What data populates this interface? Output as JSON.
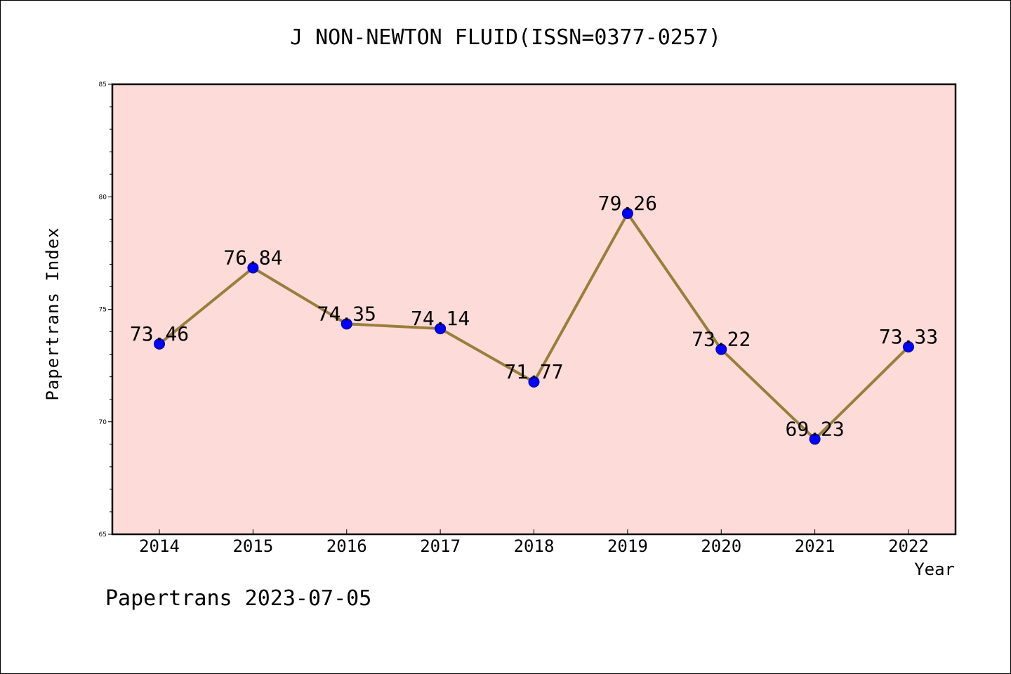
{
  "chart_data": {
    "type": "line",
    "title": "J NON-NEWTON FLUID(ISSN=0377-0257)",
    "xlabel": "Year",
    "ylabel": "Papertrans Index",
    "categories": [
      "2014",
      "2015",
      "2016",
      "2017",
      "2018",
      "2019",
      "2020",
      "2021",
      "2022"
    ],
    "series": [
      {
        "values": [
          73.46,
          76.84,
          74.35,
          74.14,
          71.77,
          79.26,
          73.22,
          69.23,
          73.33
        ],
        "labels": [
          "73.46",
          "76.84",
          "74.35",
          "74.14",
          "71.77",
          "79.26",
          "73.22",
          "69.23",
          "73.33"
        ]
      }
    ],
    "ylim": [
      65,
      85
    ],
    "yticks": [
      "65",
      "70",
      "75",
      "80",
      "85"
    ],
    "grid": false,
    "colors": {
      "plot_background": "#fddbd8",
      "line": "#9a7e3b",
      "marker": "#0000ff"
    }
  },
  "footer": "Papertrans 2023-07-05"
}
